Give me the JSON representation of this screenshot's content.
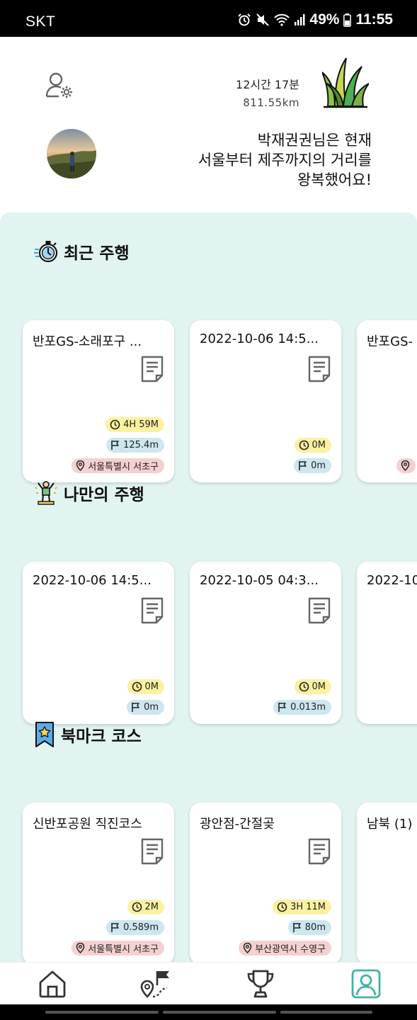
{
  "status_bar": {
    "carrier": "SKT",
    "battery": "49%",
    "time": "11:55"
  },
  "header": {
    "total_time": "12시간 17분",
    "total_distance": "811.55km",
    "message_line1": "박재권권님은 현재",
    "message_line2": "서울부터 제주까지의 거리를",
    "message_line3": "왕복했어요!"
  },
  "recent": {
    "title": "최근 주행",
    "cards": [
      {
        "title": "반포GS-소래포구 ...",
        "time": "4H 59M",
        "distance": "125.4m",
        "location": "서울특별시 서초구"
      },
      {
        "title": "2022-10-06 14:5...",
        "time": "0M",
        "distance": "0m"
      },
      {
        "title": "반포GS-"
      }
    ]
  },
  "mine": {
    "title": "나만의 주행",
    "cards": [
      {
        "title": "2022-10-06 14:5...",
        "time": "0M",
        "distance": "0m"
      },
      {
        "title": "2022-10-05 04:3...",
        "time": "0M",
        "distance": "0.013m"
      },
      {
        "title": "2022-10"
      }
    ]
  },
  "bookmark": {
    "title": "북마크 코스",
    "cards": [
      {
        "title": "신반포공원 직진코스",
        "time": "2M",
        "distance": "0.589m",
        "location": "서울특별시 서초구"
      },
      {
        "title": "광안점-간절곶",
        "time": "3H 11M",
        "distance": "80m",
        "location": "부산광역시 수영구"
      },
      {
        "title": "남북 (1)"
      }
    ]
  },
  "nav": {
    "active": "profile"
  },
  "colors": {
    "panel_bg": "#e2f4f1",
    "time_badge": "#fbf1a0",
    "distance_badge": "#cde6f0",
    "location_badge": "#f5d0d0",
    "active_nav": "#3db5a6"
  },
  "icons": [
    "user-settings-icon",
    "grass-icon",
    "stopwatch-icon",
    "person-cheer-icon",
    "bookmark-star-icon",
    "document-icon",
    "clock-icon",
    "flag-icon",
    "location-pin-icon",
    "home-icon",
    "route-flag-icon",
    "trophy-icon",
    "profile-icon"
  ]
}
